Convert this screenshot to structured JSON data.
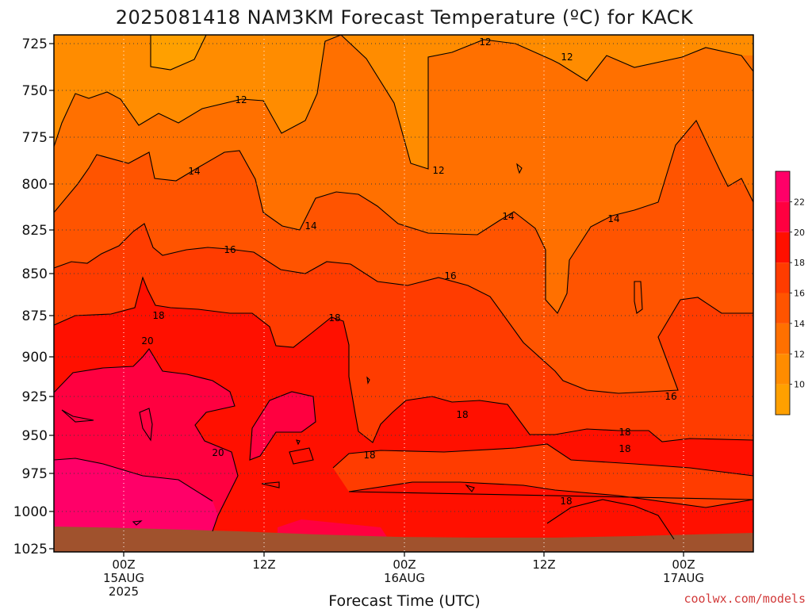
{
  "chart_data": {
    "type": "heatmap",
    "title": "2025081418 NAM3KM Forecast Temperature (ºC) for KACK",
    "xlabel": "Forecast Time (UTC)",
    "ylabel": "",
    "y_ticks": [
      "725",
      "750",
      "775",
      "800",
      "825",
      "850",
      "875",
      "900",
      "925",
      "950",
      "975",
      "1000",
      "1025"
    ],
    "ylim": [
      725,
      1025
    ],
    "y_axis": "pressure (hPa), increasing downward",
    "x_ticks": [
      {
        "line1": "00Z",
        "line2": "15AUG",
        "line3": "2025"
      },
      {
        "line1": "12Z",
        "line2": "",
        "line3": ""
      },
      {
        "line1": "00Z",
        "line2": "16AUG",
        "line3": ""
      },
      {
        "line1": "12Z",
        "line2": "",
        "line3": ""
      },
      {
        "line1": "00Z",
        "line2": "17AUG",
        "line3": ""
      }
    ],
    "grid": true,
    "colorbar": {
      "ticks": [
        "10",
        "12",
        "14",
        "16",
        "18",
        "20",
        "22"
      ],
      "bands": [
        {
          "min": 8,
          "max": 10,
          "color": "#ffa000"
        },
        {
          "min": 10,
          "max": 12,
          "color": "#ff8c00"
        },
        {
          "min": 12,
          "max": 14,
          "color": "#ff7000"
        },
        {
          "min": 14,
          "max": 16,
          "color": "#ff5400"
        },
        {
          "min": 16,
          "max": 18,
          "color": "#ff3c00"
        },
        {
          "min": 18,
          "max": 20,
          "color": "#ff1000"
        },
        {
          "min": 20,
          "max": 22,
          "color": "#ff0040"
        },
        {
          "min": 22,
          "max": 24,
          "color": "#ff0068"
        }
      ]
    },
    "contour_labels": [
      "12",
      "12",
      "12",
      "12",
      "14",
      "14",
      "14",
      "14",
      "16",
      "16",
      "16",
      "18",
      "18",
      "18",
      "18",
      "18",
      "18",
      "18",
      "20",
      "20"
    ],
    "ground_color": "#a0522d"
  },
  "footer": {
    "credit": "coolwx.com/models"
  }
}
